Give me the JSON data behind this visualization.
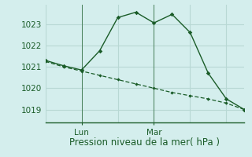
{
  "title": "Pression niveau de la mer( hPa )",
  "bg_color": "#d4eeed",
  "grid_color": "#b8d8d4",
  "line_color": "#1a5c28",
  "xlim": [
    0,
    11
  ],
  "ylim": [
    1018.4,
    1023.9
  ],
  "yticks": [
    1019,
    1020,
    1021,
    1022,
    1023
  ],
  "line1_x": [
    0,
    1,
    2,
    3,
    4,
    5,
    6,
    7,
    8,
    9,
    10,
    11
  ],
  "line1_y": [
    1021.3,
    1021.05,
    1020.85,
    1021.75,
    1023.3,
    1023.55,
    1023.05,
    1023.45,
    1022.6,
    1020.7,
    1019.5,
    1019.0
  ],
  "line2_x": [
    0,
    1,
    2,
    3,
    4,
    5,
    6,
    7,
    8,
    9,
    10,
    11
  ],
  "line2_y": [
    1021.25,
    1021.0,
    1020.8,
    1020.6,
    1020.4,
    1020.2,
    1020.0,
    1019.8,
    1019.65,
    1019.5,
    1019.3,
    1019.0
  ],
  "lun_x": 2,
  "mar_x": 6,
  "vgrid_x": [
    0,
    2,
    4,
    6,
    8,
    10
  ],
  "label_fontsize": 8.5,
  "tick_fontsize": 7.5
}
